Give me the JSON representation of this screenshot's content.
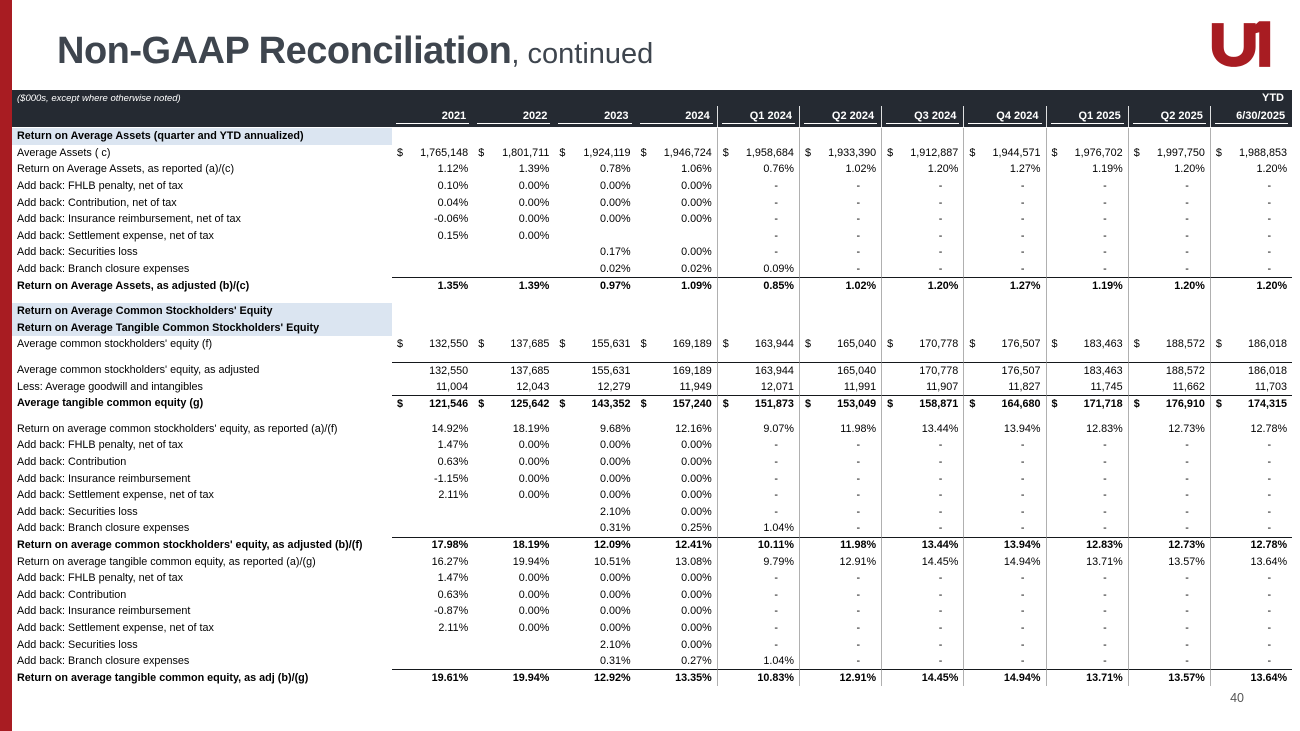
{
  "slide": {
    "title_bold": "Non-GAAP Reconciliation",
    "title_rest": ", continued",
    "page_number": "40",
    "logo_text": "U1"
  },
  "colors": {
    "accent_red": "#A81C22",
    "band_bg": "#252A32",
    "section_bg": "#DBE5F1",
    "title_color": "#3E454E"
  },
  "header": {
    "note": "($000s, except where otherwise noted)",
    "ytd_label": "YTD",
    "columns": [
      "2021",
      "2022",
      "2023",
      "2024",
      "Q1 2024",
      "Q2 2024",
      "Q3 2024",
      "Q4 2024",
      "Q1 2025",
      "Q2 2025",
      "6/30/2025"
    ]
  },
  "table": {
    "rows": [
      {
        "type": "section",
        "label": "Return on Average Assets (quarter and YTD annualized)"
      },
      {
        "type": "data",
        "label": "Average Assets ( c)",
        "dollar": true,
        "values": [
          "1,765,148",
          "1,801,711",
          "1,924,119",
          "1,946,724",
          "1,958,684",
          "1,933,390",
          "1,912,887",
          "1,944,571",
          "1,976,702",
          "1,997,750",
          "1,988,853"
        ]
      },
      {
        "type": "data",
        "label": "Return on Average Assets, as reported (a)/(c)",
        "values": [
          "1.12%",
          "1.39%",
          "0.78%",
          "1.06%",
          "0.76%",
          "1.02%",
          "1.20%",
          "1.27%",
          "1.19%",
          "1.20%",
          "1.20%"
        ]
      },
      {
        "type": "data",
        "label": "Add back: FHLB penalty, net of tax",
        "values": [
          "0.10%",
          "0.00%",
          "0.00%",
          "0.00%",
          "-",
          "-",
          "-",
          "-",
          "-",
          "-",
          "-"
        ]
      },
      {
        "type": "data",
        "label": "Add back: Contribution, net of tax",
        "values": [
          "0.04%",
          "0.00%",
          "0.00%",
          "0.00%",
          "-",
          "-",
          "-",
          "-",
          "-",
          "-",
          "-"
        ]
      },
      {
        "type": "data",
        "label": "Add back: Insurance reimbursement, net of tax",
        "values": [
          "-0.06%",
          "0.00%",
          "0.00%",
          "0.00%",
          "-",
          "-",
          "-",
          "-",
          "-",
          "-",
          "-"
        ]
      },
      {
        "type": "data",
        "label": "Add back: Settlement expense, net of tax",
        "values": [
          "0.15%",
          "0.00%",
          "",
          "",
          "-",
          "-",
          "-",
          "-",
          "-",
          "-",
          "-"
        ]
      },
      {
        "type": "data",
        "label": "Add back: Securities loss",
        "values": [
          "",
          "",
          "0.17%",
          "0.00%",
          "-",
          "-",
          "-",
          "-",
          "-",
          "-",
          "-"
        ]
      },
      {
        "type": "data",
        "label": "Add back: Branch closure expenses",
        "values": [
          "",
          "",
          "0.02%",
          "0.02%",
          "0.09%",
          "-",
          "-",
          "-",
          "-",
          "-",
          "-"
        ]
      },
      {
        "type": "bold",
        "label": "Return on Average Assets, as adjusted (b)/(c)",
        "line": true,
        "values": [
          "1.35%",
          "1.39%",
          "0.97%",
          "1.09%",
          "0.85%",
          "1.02%",
          "1.20%",
          "1.27%",
          "1.19%",
          "1.20%",
          "1.20%"
        ]
      },
      {
        "type": "blank"
      },
      {
        "type": "section",
        "label": "Return on Average Common Stockholders' Equity"
      },
      {
        "type": "section",
        "label": "Return on Average Tangible Common Stockholders' Equity"
      },
      {
        "type": "data",
        "label": "Average common stockholders' equity (f)",
        "dollar": true,
        "values": [
          "132,550",
          "137,685",
          "155,631",
          "169,189",
          "163,944",
          "165,040",
          "170,778",
          "176,507",
          "183,463",
          "188,572",
          "186,018"
        ]
      },
      {
        "type": "blank"
      },
      {
        "type": "data",
        "label": "Average common stockholders' equity, as adjusted",
        "line": true,
        "values": [
          "132,550",
          "137,685",
          "155,631",
          "169,189",
          "163,944",
          "165,040",
          "170,778",
          "176,507",
          "183,463",
          "188,572",
          "186,018"
        ]
      },
      {
        "type": "data",
        "label": "Less: Average goodwill and intangibles",
        "values": [
          "11,004",
          "12,043",
          "12,279",
          "11,949",
          "12,071",
          "11,991",
          "11,907",
          "11,827",
          "11,745",
          "11,662",
          "11,703"
        ]
      },
      {
        "type": "bold",
        "label": "Average tangible common equity (g)",
        "dollar": true,
        "line": true,
        "values": [
          "121,546",
          "125,642",
          "143,352",
          "157,240",
          "151,873",
          "153,049",
          "158,871",
          "164,680",
          "171,718",
          "176,910",
          "174,315"
        ]
      },
      {
        "type": "blank"
      },
      {
        "type": "data",
        "label": "Return on average common stockholders' equity, as reported (a)/(f)",
        "values": [
          "14.92%",
          "18.19%",
          "9.68%",
          "12.16%",
          "9.07%",
          "11.98%",
          "13.44%",
          "13.94%",
          "12.83%",
          "12.73%",
          "12.78%"
        ]
      },
      {
        "type": "data",
        "label": "Add back: FHLB penalty, net of tax",
        "values": [
          "1.47%",
          "0.00%",
          "0.00%",
          "0.00%",
          "-",
          "-",
          "-",
          "-",
          "-",
          "-",
          "-"
        ]
      },
      {
        "type": "data",
        "label": "Add back: Contribution",
        "values": [
          "0.63%",
          "0.00%",
          "0.00%",
          "0.00%",
          "-",
          "-",
          "-",
          "-",
          "-",
          "-",
          "-"
        ]
      },
      {
        "type": "data",
        "label": "Add back: Insurance reimbursement",
        "values": [
          "-1.15%",
          "0.00%",
          "0.00%",
          "0.00%",
          "-",
          "-",
          "-",
          "-",
          "-",
          "-",
          "-"
        ]
      },
      {
        "type": "data",
        "label": "Add back: Settlement expense, net of tax",
        "values": [
          "2.11%",
          "0.00%",
          "0.00%",
          "0.00%",
          "-",
          "-",
          "-",
          "-",
          "-",
          "-",
          "-"
        ]
      },
      {
        "type": "data",
        "label": "Add back: Securities loss",
        "values": [
          "",
          "",
          "2.10%",
          "0.00%",
          "-",
          "-",
          "-",
          "-",
          "-",
          "-",
          "-"
        ]
      },
      {
        "type": "data",
        "label": "Add back: Branch closure expenses",
        "values": [
          "",
          "",
          "0.31%",
          "0.25%",
          "1.04%",
          "-",
          "-",
          "-",
          "-",
          "-",
          "-"
        ]
      },
      {
        "type": "bold",
        "label": "Return on average common stockholders' equity, as adjusted (b)/(f)",
        "line": true,
        "values": [
          "17.98%",
          "18.19%",
          "12.09%",
          "12.41%",
          "10.11%",
          "11.98%",
          "13.44%",
          "13.94%",
          "12.83%",
          "12.73%",
          "12.78%"
        ]
      },
      {
        "type": "data",
        "label": "Return on average tangible common equity, as reported (a)/(g)",
        "values": [
          "16.27%",
          "19.94%",
          "10.51%",
          "13.08%",
          "9.79%",
          "12.91%",
          "14.45%",
          "14.94%",
          "13.71%",
          "13.57%",
          "13.64%"
        ]
      },
      {
        "type": "data",
        "label": "Add back: FHLB penalty, net of tax",
        "values": [
          "1.47%",
          "0.00%",
          "0.00%",
          "0.00%",
          "-",
          "-",
          "-",
          "-",
          "-",
          "-",
          "-"
        ]
      },
      {
        "type": "data",
        "label": "Add back: Contribution",
        "values": [
          "0.63%",
          "0.00%",
          "0.00%",
          "0.00%",
          "-",
          "-",
          "-",
          "-",
          "-",
          "-",
          "-"
        ]
      },
      {
        "type": "data",
        "label": "Add back: Insurance reimbursement",
        "values": [
          "-0.87%",
          "0.00%",
          "0.00%",
          "0.00%",
          "-",
          "-",
          "-",
          "-",
          "-",
          "-",
          "-"
        ]
      },
      {
        "type": "data",
        "label": "Add back: Settlement expense, net of tax",
        "values": [
          "2.11%",
          "0.00%",
          "0.00%",
          "0.00%",
          "-",
          "-",
          "-",
          "-",
          "-",
          "-",
          "-"
        ]
      },
      {
        "type": "data",
        "label": "Add back: Securities loss",
        "values": [
          "",
          "",
          "2.10%",
          "0.00%",
          "-",
          "-",
          "-",
          "-",
          "-",
          "-",
          "-"
        ]
      },
      {
        "type": "data",
        "label": "Add back: Branch closure expenses",
        "values": [
          "",
          "",
          "0.31%",
          "0.27%",
          "1.04%",
          "-",
          "-",
          "-",
          "-",
          "-",
          "-"
        ]
      },
      {
        "type": "bold",
        "label": "Return on average tangible common equity, as adj (b)/(g)",
        "line": true,
        "values": [
          "19.61%",
          "19.94%",
          "12.92%",
          "13.35%",
          "10.83%",
          "12.91%",
          "14.45%",
          "14.94%",
          "13.71%",
          "13.57%",
          "13.64%"
        ]
      }
    ]
  }
}
